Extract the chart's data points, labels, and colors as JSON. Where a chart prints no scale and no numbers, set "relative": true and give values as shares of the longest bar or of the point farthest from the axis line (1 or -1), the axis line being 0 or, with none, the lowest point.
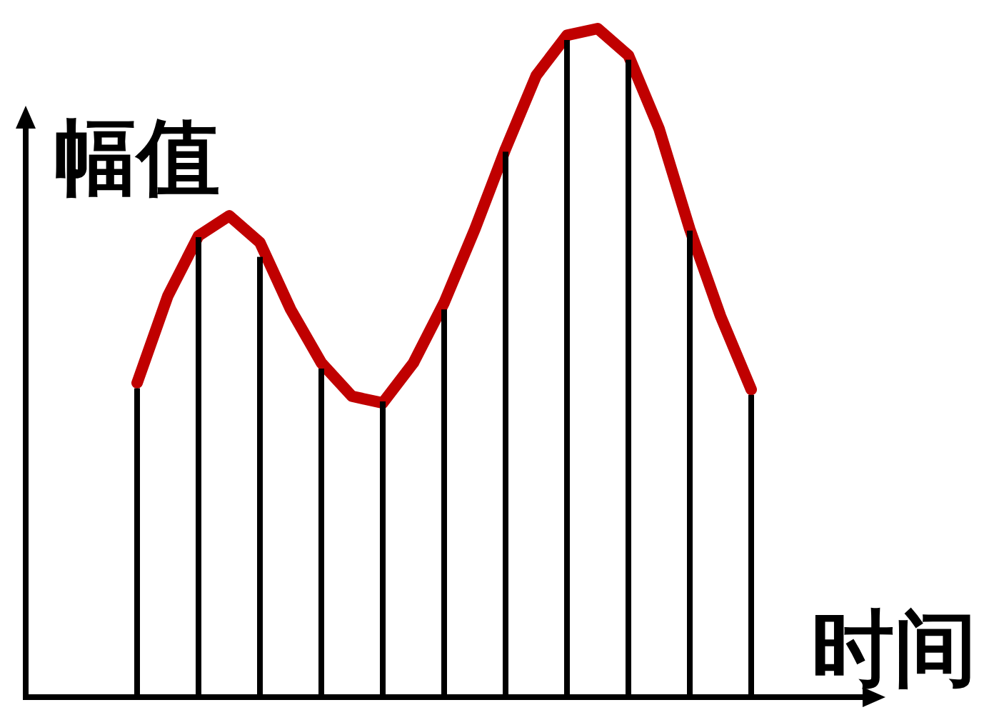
{
  "chart_data": [
    {
      "type": "line",
      "relative": true,
      "xlabel": "时间",
      "ylabel": "幅值",
      "categories": [
        null,
        null,
        null,
        null,
        null,
        null,
        null,
        null,
        null,
        null,
        null,
        null,
        null,
        null,
        null,
        null,
        null,
        null,
        null,
        null,
        null
      ],
      "series": [
        {
          "color": "#c00000",
          "values": [
            0.47,
            0.6,
            0.69,
            0.72,
            0.68,
            0.58,
            0.5,
            0.45,
            0.44,
            0.5,
            0.59,
            0.7,
            0.82,
            0.93,
            0.99,
            1,
            0.96,
            0.85,
            0.7,
            0.57,
            0.46
          ]
        }
      ]
    },
    {
      "type": "bar",
      "relative": true,
      "categories": [
        null,
        null,
        null,
        null,
        null,
        null,
        null,
        null,
        null,
        null,
        null
      ],
      "series": [
        {
          "color": "#000000",
          "values": [
            0.47,
            0.7,
            0.67,
            0.5,
            0.45,
            0.59,
            0.83,
            1,
            0.97,
            0.71,
            0.46
          ]
        }
      ]
    }
  ]
}
